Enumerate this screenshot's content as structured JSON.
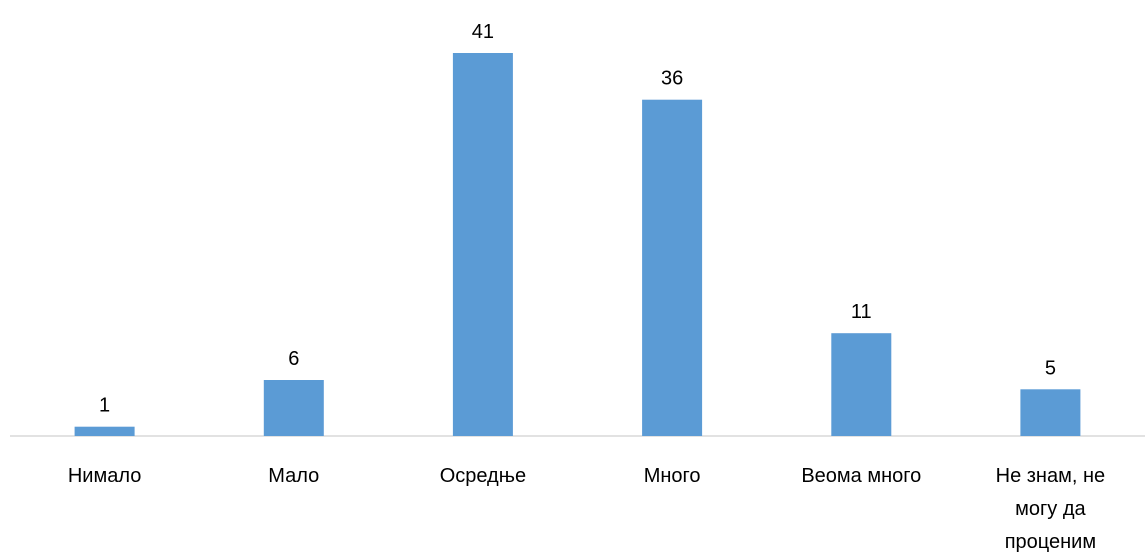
{
  "chart_data": {
    "type": "bar",
    "categories": [
      [
        "Нимало"
      ],
      [
        "Мало"
      ],
      [
        "Осредње"
      ],
      [
        "Много"
      ],
      [
        "Веома много"
      ],
      [
        "Не знам, не",
        "могу да",
        "проценим"
      ]
    ],
    "values": [
      1,
      6,
      41,
      36,
      11,
      5
    ],
    "data_labels": [
      "1",
      "6",
      "41",
      "36",
      "11",
      "5"
    ],
    "title": "",
    "xlabel": "",
    "ylabel": "",
    "ylim": [
      0,
      41
    ],
    "grid": false,
    "legend": "none",
    "colors": {
      "bar": "#5B9BD5",
      "axis": "#D9D9D9",
      "text": "#000000"
    }
  }
}
